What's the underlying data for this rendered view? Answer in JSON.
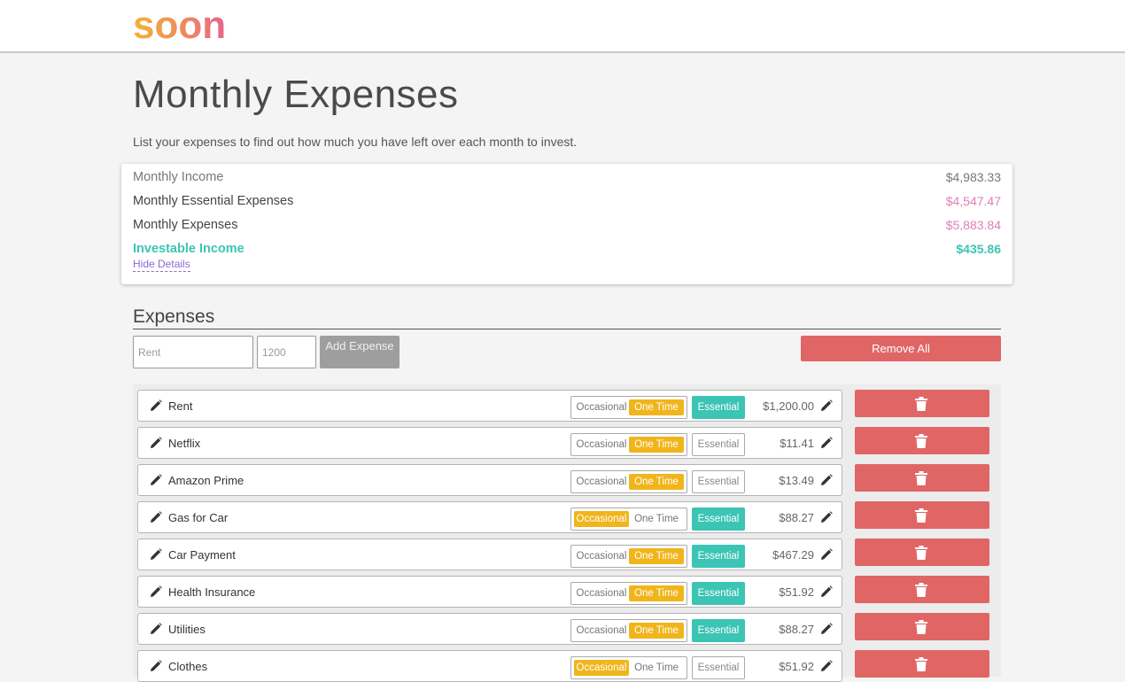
{
  "app": {
    "logo_text": "soon"
  },
  "page": {
    "title": "Monthly Expenses",
    "subtitle": "List your expenses to find out how much you have left over each month to invest."
  },
  "summary": {
    "income_label": "Monthly Income",
    "income_value": "$4,983.33",
    "essential_label": "Monthly Essential Expenses",
    "essential_value": "$4,547.47",
    "expenses_label": "Monthly Expenses",
    "expenses_value": "$5,883.84",
    "investable_label": "Investable Income",
    "investable_value": "$435.86",
    "hide_details": "Hide Details"
  },
  "expenses": {
    "heading": "Expenses",
    "name_placeholder": "Rent",
    "amount_placeholder": "1200",
    "add_label": "Add Expense",
    "remove_all_label": "Remove All",
    "occasional_label": "Occasional",
    "one_time_label": "One Time",
    "essential_label": "Essential",
    "items": [
      {
        "name": "Rent",
        "frequency": "One Time",
        "essential": true,
        "amount": "$1,200.00"
      },
      {
        "name": "Netflix",
        "frequency": "One Time",
        "essential": false,
        "amount": "$11.41"
      },
      {
        "name": "Amazon Prime",
        "frequency": "One Time",
        "essential": false,
        "amount": "$13.49"
      },
      {
        "name": "Gas for Car",
        "frequency": "Occasional",
        "essential": true,
        "amount": "$88.27"
      },
      {
        "name": "Car Payment",
        "frequency": "One Time",
        "essential": true,
        "amount": "$467.29"
      },
      {
        "name": "Health Insurance",
        "frequency": "One Time",
        "essential": true,
        "amount": "$51.92"
      },
      {
        "name": "Utilities",
        "frequency": "One Time",
        "essential": true,
        "amount": "$88.27"
      },
      {
        "name": "Clothes",
        "frequency": "Occasional",
        "essential": false,
        "amount": "$51.92"
      }
    ]
  },
  "icons": {
    "edit": "pencil-icon",
    "delete": "trash-icon"
  },
  "colors": {
    "brand_gradient": [
      "#f2b23a",
      "#ea6f8b"
    ],
    "essential_pink": "#e07fb8",
    "investable_teal": "#3cc4b4",
    "toggle_active": "#f1b51c",
    "danger": "#e06666",
    "link_purple": "#8a6bd6"
  }
}
